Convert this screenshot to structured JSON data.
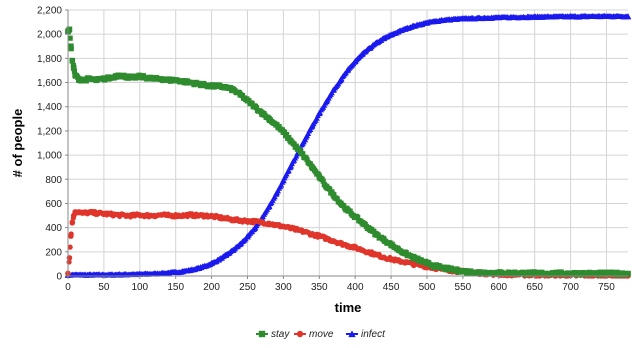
{
  "chart_data": {
    "type": "line",
    "title": "",
    "xlabel": "time",
    "ylabel": "# of people",
    "xlim": [
      0,
      780
    ],
    "ylim": [
      0,
      2200
    ],
    "xticks": [
      0,
      50,
      100,
      150,
      200,
      250,
      300,
      350,
      400,
      450,
      500,
      550,
      600,
      650,
      700,
      750
    ],
    "yticks": [
      0,
      200,
      400,
      600,
      800,
      1000,
      1200,
      1400,
      1600,
      1800,
      2000,
      2200
    ],
    "xtick_labels": [
      "0",
      "50",
      "100",
      "150",
      "200",
      "250",
      "300",
      "350",
      "400",
      "450",
      "500",
      "550",
      "600",
      "650",
      "700",
      "750"
    ],
    "ytick_labels": [
      "0",
      "200",
      "400",
      "600",
      "800",
      "1,000",
      "1,200",
      "1,400",
      "1,600",
      "1,800",
      "2,000",
      "2,200"
    ],
    "grid": true,
    "legend_position": "bottom-center",
    "series": [
      {
        "name": "stay",
        "color": "#2e8b2e",
        "marker": "square",
        "x": [
          0,
          2,
          4,
          6,
          8,
          10,
          15,
          20,
          30,
          40,
          50,
          60,
          70,
          80,
          90,
          100,
          110,
          120,
          130,
          140,
          150,
          160,
          170,
          180,
          190,
          200,
          210,
          220,
          230,
          240,
          250,
          260,
          270,
          280,
          290,
          300,
          310,
          320,
          330,
          340,
          350,
          360,
          370,
          380,
          390,
          400,
          410,
          420,
          430,
          440,
          450,
          460,
          470,
          480,
          490,
          500,
          510,
          520,
          530,
          540,
          550,
          560,
          570,
          580,
          590,
          600,
          620,
          640,
          660,
          680,
          700,
          720,
          740,
          760,
          780
        ],
        "y": [
          2020,
          2040,
          1900,
          1780,
          1720,
          1660,
          1630,
          1620,
          1630,
          1620,
          1630,
          1640,
          1660,
          1650,
          1640,
          1650,
          1640,
          1630,
          1630,
          1620,
          1620,
          1610,
          1600,
          1590,
          1580,
          1570,
          1570,
          1560,
          1540,
          1500,
          1450,
          1400,
          1350,
          1300,
          1250,
          1190,
          1120,
          1050,
          980,
          900,
          820,
          740,
          670,
          600,
          540,
          490,
          440,
          390,
          340,
          300,
          260,
          220,
          185,
          155,
          130,
          105,
          85,
          70,
          58,
          48,
          40,
          34,
          30,
          28,
          26,
          25,
          24,
          23,
          22,
          22,
          21,
          21,
          20,
          20,
          20
        ]
      },
      {
        "name": "move",
        "color": "#e0352b",
        "marker": "circle",
        "x": [
          0,
          2,
          4,
          6,
          8,
          10,
          15,
          20,
          30,
          40,
          50,
          60,
          70,
          80,
          90,
          100,
          110,
          120,
          130,
          140,
          150,
          160,
          170,
          180,
          190,
          200,
          210,
          220,
          230,
          240,
          250,
          260,
          270,
          280,
          290,
          300,
          310,
          320,
          330,
          340,
          350,
          360,
          370,
          380,
          390,
          400,
          410,
          420,
          430,
          440,
          450,
          460,
          470,
          480,
          490,
          500,
          510,
          520,
          530,
          540,
          550,
          560,
          570,
          580,
          590,
          600,
          620,
          640,
          660,
          680,
          700,
          720,
          740,
          760,
          780
        ],
        "y": [
          20,
          150,
          330,
          440,
          500,
          530,
          530,
          520,
          525,
          520,
          515,
          510,
          505,
          500,
          500,
          505,
          500,
          500,
          505,
          500,
          500,
          500,
          505,
          500,
          500,
          495,
          485,
          475,
          465,
          460,
          455,
          450,
          445,
          435,
          420,
          410,
          395,
          380,
          365,
          345,
          330,
          310,
          290,
          270,
          250,
          235,
          215,
          195,
          175,
          155,
          140,
          125,
          115,
          100,
          90,
          78,
          68,
          58,
          50,
          42,
          36,
          30,
          26,
          22,
          18,
          15,
          12,
          10,
          8,
          6,
          5,
          4,
          3,
          3,
          2
        ]
      },
      {
        "name": "infect",
        "color": "#1a1aee",
        "marker": "triangle",
        "x": [
          0,
          10,
          20,
          30,
          40,
          50,
          60,
          70,
          80,
          90,
          100,
          110,
          120,
          130,
          140,
          150,
          160,
          170,
          180,
          190,
          200,
          210,
          220,
          230,
          240,
          250,
          260,
          270,
          280,
          290,
          300,
          310,
          320,
          330,
          340,
          350,
          360,
          370,
          380,
          390,
          400,
          410,
          420,
          430,
          440,
          450,
          460,
          470,
          480,
          490,
          500,
          510,
          520,
          530,
          540,
          550,
          560,
          570,
          580,
          590,
          600,
          620,
          640,
          660,
          680,
          700,
          720,
          740,
          760,
          780
        ],
        "y": [
          10,
          10,
          10,
          10,
          10,
          10,
          11,
          12,
          13,
          14,
          15,
          17,
          19,
          22,
          26,
          31,
          38,
          48,
          62,
          80,
          104,
          135,
          172,
          215,
          265,
          325,
          395,
          480,
          575,
          680,
          790,
          905,
          1020,
          1130,
          1240,
          1345,
          1445,
          1540,
          1625,
          1705,
          1775,
          1835,
          1885,
          1930,
          1965,
          1995,
          2020,
          2045,
          2065,
          2080,
          2095,
          2105,
          2115,
          2120,
          2125,
          2128,
          2130,
          2132,
          2134,
          2136,
          2138,
          2140,
          2142,
          2144,
          2145,
          2146,
          2147,
          2148,
          2148,
          2148
        ]
      }
    ]
  }
}
